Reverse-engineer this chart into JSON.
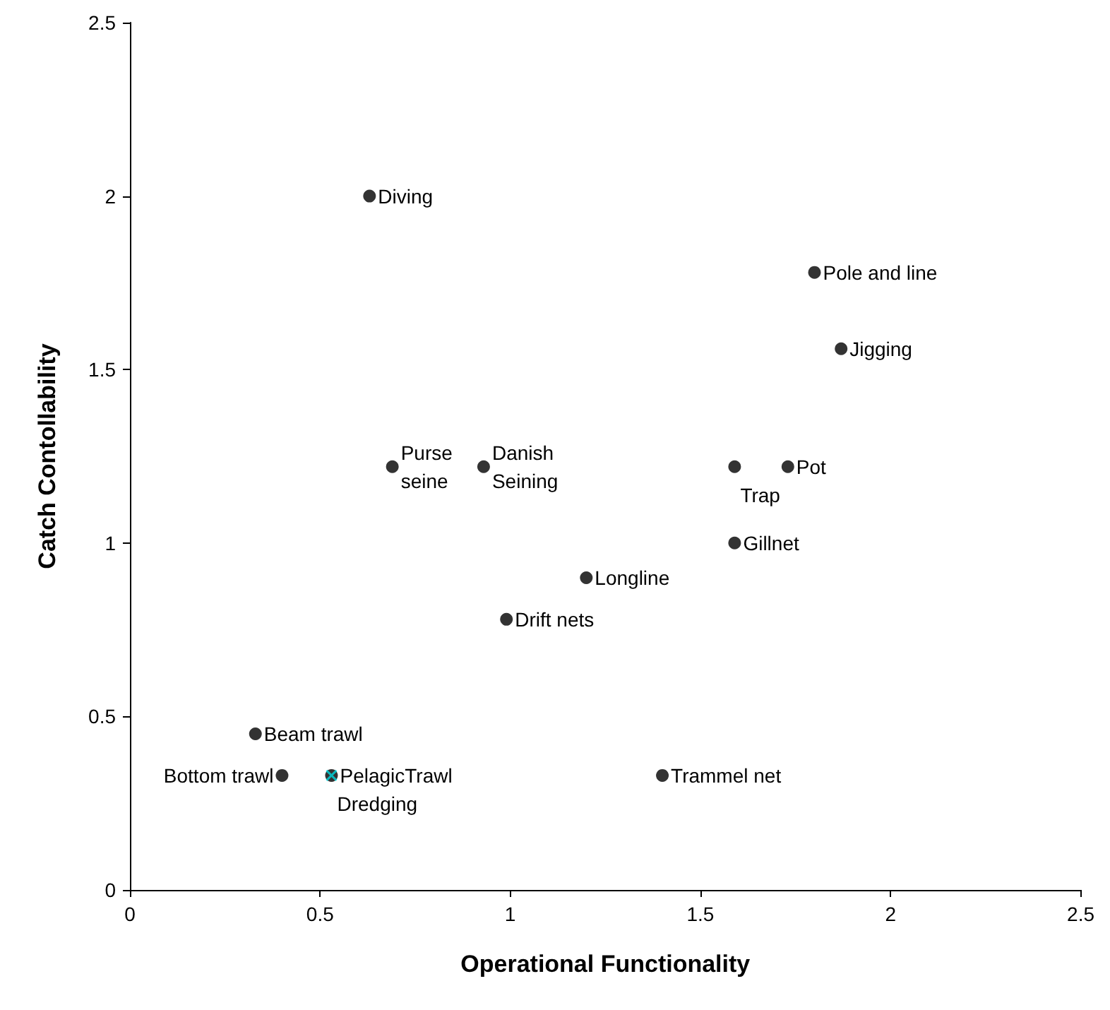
{
  "chart_data": {
    "type": "scatter",
    "xlabel": "Operational Functionality",
    "ylabel": "Catch Contollability",
    "xlim": [
      0,
      2.5
    ],
    "xticks": [
      0,
      0.5,
      1,
      1.5,
      2,
      2.5
    ],
    "ylim": [
      0,
      2.5
    ],
    "yticks": [
      0,
      0.5,
      1,
      1.5,
      2,
      2.5
    ],
    "grid": false,
    "series": [
      {
        "color": "#000000",
        "marker": "circle",
        "x": [
          0.63,
          1.8,
          1.87,
          0.69,
          0.93,
          1.59,
          1.73,
          1.59,
          1.2,
          0.99,
          0.33,
          0.4,
          0.53,
          1.4
        ],
        "values": [
          2.0,
          1.78,
          1.56,
          1.22,
          1.22,
          1.22,
          1.22,
          1.0,
          0.9,
          0.78,
          0.45,
          0.33,
          0.33,
          0.33
        ]
      },
      {
        "color": "#00d8e0",
        "marker": "cross",
        "x": [
          0.53
        ],
        "values": [
          0.33
        ]
      }
    ],
    "annotations": [
      {
        "text": "Diving",
        "x": 0.63,
        "y": 2.0
      },
      {
        "text": "Pole and line",
        "x": 1.8,
        "y": 1.78
      },
      {
        "text": "Jigging",
        "x": 1.87,
        "y": 1.56
      },
      {
        "text": "Purse\nseine",
        "x": 0.69,
        "y": 1.22
      },
      {
        "text": "Danish\nSeining",
        "x": 0.93,
        "y": 1.22
      },
      {
        "text": "Trap",
        "x": 1.59,
        "y": 1.22
      },
      {
        "text": "Pot",
        "x": 1.73,
        "y": 1.22
      },
      {
        "text": "Gillnet",
        "x": 1.59,
        "y": 1.0
      },
      {
        "text": "Longline",
        "x": 1.2,
        "y": 0.9
      },
      {
        "text": "Drift nets",
        "x": 0.99,
        "y": 0.78
      },
      {
        "text": "Beam trawl",
        "x": 0.33,
        "y": 0.45
      },
      {
        "text": "PelagicTrawl",
        "x": 0.53,
        "y": 0.33
      },
      {
        "text": "Dredging",
        "x": 0.53,
        "y": 0.33
      },
      {
        "text": "Bottom trawl",
        "x": 0.4,
        "y": 0.33
      },
      {
        "text": "Trammel net",
        "x": 1.4,
        "y": 0.33
      }
    ]
  }
}
